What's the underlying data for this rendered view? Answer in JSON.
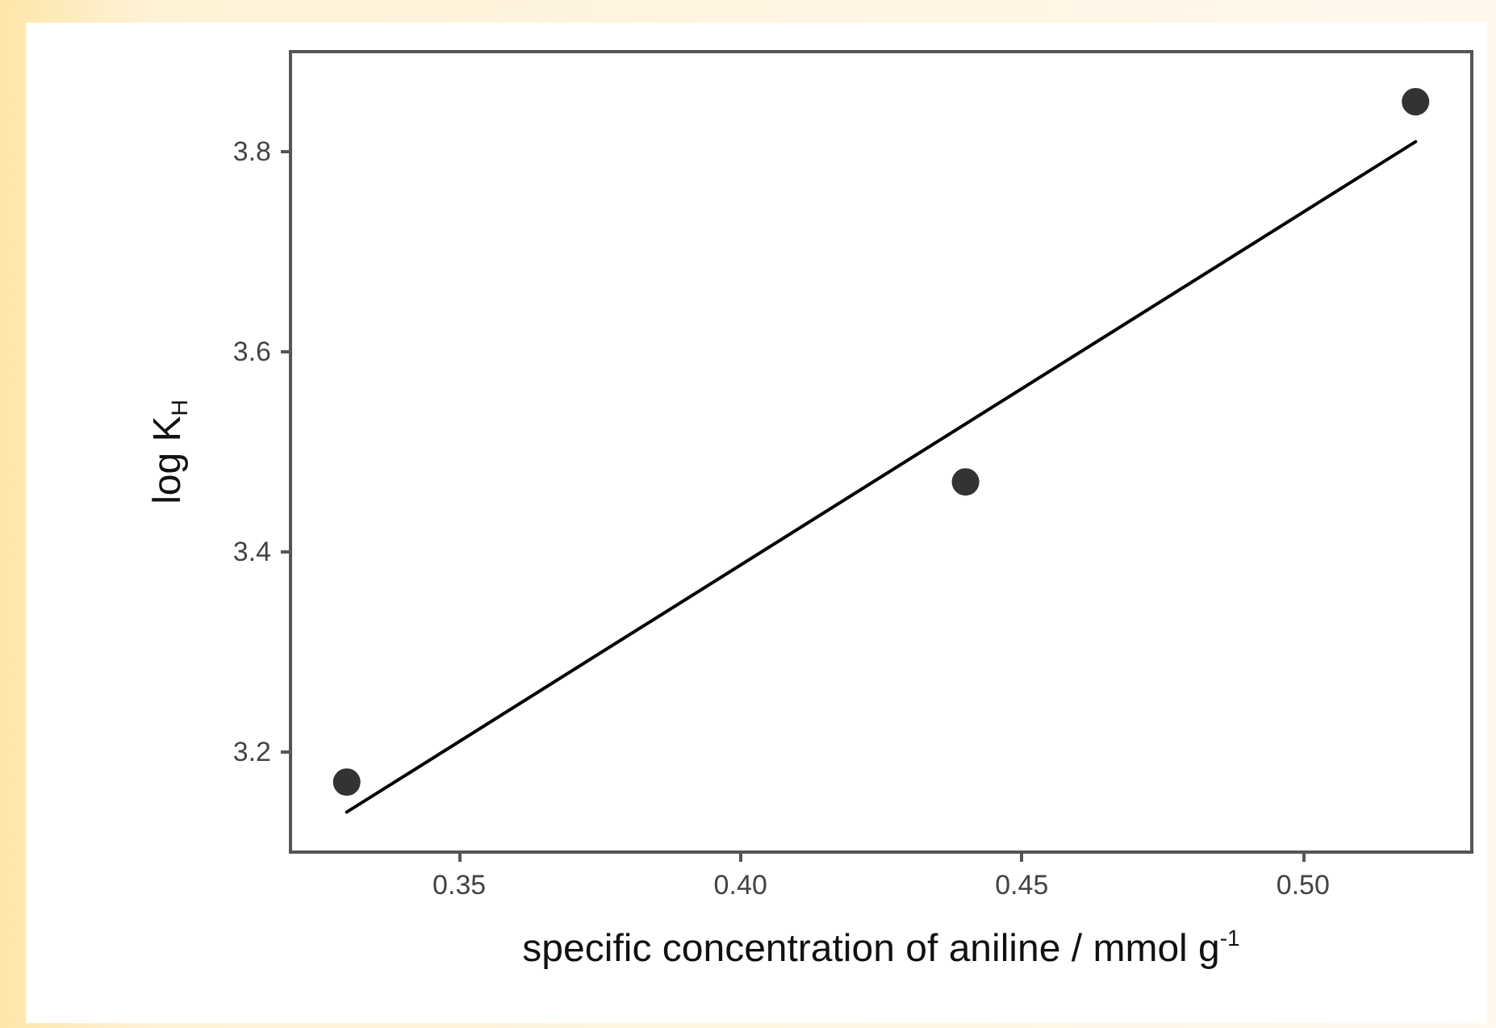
{
  "chart_data": {
    "type": "scatter",
    "xlabel": "specific concentration of aniline / mmol g$^{-1}$",
    "ylabel": "log K$_{H}$",
    "xlim": [
      0.32,
      0.53
    ],
    "xticks": [
      {
        "value": 0.35,
        "label": "0.35"
      },
      {
        "value": 0.4,
        "label": "0.40"
      },
      {
        "value": 0.45,
        "label": "0.45"
      },
      {
        "value": 0.5,
        "label": "0.50"
      }
    ],
    "ylim": [
      3.1,
      3.9
    ],
    "yticks": [
      {
        "value": 3.2,
        "label": "3.2"
      },
      {
        "value": 3.4,
        "label": "3.4"
      },
      {
        "value": 3.6,
        "label": "3.6"
      },
      {
        "value": 3.8,
        "label": "3.8"
      }
    ],
    "grid": false,
    "series": [
      {
        "color": "#000000",
        "marker": "circle",
        "x": [
          0.33,
          0.44,
          0.52
        ],
        "values": [
          3.17,
          3.47,
          3.85
        ]
      },
      {
        "type": "line",
        "color": "#000000",
        "marker": "none",
        "line_style": "solid",
        "x": [
          0.33,
          0.52
        ],
        "values": [
          3.14,
          3.81
        ]
      }
    ]
  }
}
